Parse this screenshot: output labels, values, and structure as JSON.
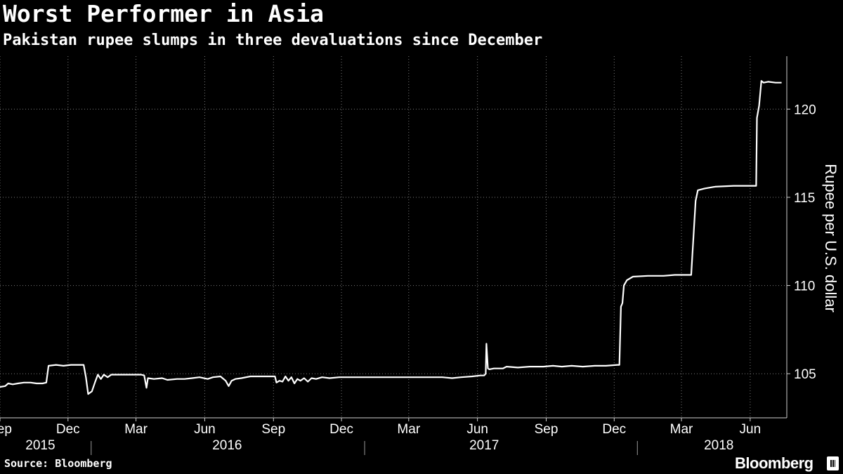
{
  "header": {
    "title": "Worst Performer in Asia",
    "subtitle": "Pakistan rupee slumps in three devaluations since December"
  },
  "footer": {
    "source": "Source: Bloomberg",
    "brand": "Bloomberg"
  },
  "colors": {
    "background": "#000000",
    "line": "#ffffff",
    "grid": "#7a7a7a",
    "text": "#ffffff"
  },
  "chart_data": {
    "type": "line",
    "title": "Worst Performer in Asia",
    "subtitle": "Pakistan rupee slumps in three devaluations since December",
    "xlabel": "",
    "ylabel": "Rupee per U.S. dollar",
    "xlim": [
      "2015-09-01",
      "2018-07-20"
    ],
    "ylim": [
      102.5,
      123.0
    ],
    "y_axis_position": "right",
    "y_ticks": [
      105,
      110,
      115,
      120
    ],
    "x_month_ticks": [
      {
        "label": "Sep",
        "date": "2015-09-01"
      },
      {
        "label": "Dec",
        "date": "2015-12-01"
      },
      {
        "label": "Mar",
        "date": "2016-03-01"
      },
      {
        "label": "Jun",
        "date": "2016-06-01"
      },
      {
        "label": "Sep",
        "date": "2016-09-01"
      },
      {
        "label": "Dec",
        "date": "2016-12-01"
      },
      {
        "label": "Mar",
        "date": "2017-03-01"
      },
      {
        "label": "Jun",
        "date": "2017-06-01"
      },
      {
        "label": "Sep",
        "date": "2017-09-01"
      },
      {
        "label": "Dec",
        "date": "2017-12-01"
      },
      {
        "label": "Mar",
        "date": "2018-03-01"
      },
      {
        "label": "Jun",
        "date": "2018-06-01"
      }
    ],
    "x_year_labels": [
      {
        "label": "2015",
        "date": "2015-10-25"
      },
      {
        "label": "2016",
        "date": "2016-07-01"
      },
      {
        "label": "2017",
        "date": "2017-06-10"
      },
      {
        "label": "2018",
        "date": "2018-04-20"
      }
    ],
    "x_year_separators": [
      "2016-01-01",
      "2017-01-01",
      "2018-01-01"
    ],
    "grid": true,
    "series": [
      {
        "name": "",
        "points": [
          [
            "2015-09-01",
            104.25
          ],
          [
            "2015-09-08",
            104.3
          ],
          [
            "2015-09-12",
            104.45
          ],
          [
            "2015-09-18",
            104.4
          ],
          [
            "2015-09-25",
            104.45
          ],
          [
            "2015-10-03",
            104.5
          ],
          [
            "2015-10-12",
            104.5
          ],
          [
            "2015-10-20",
            104.45
          ],
          [
            "2015-10-28",
            104.45
          ],
          [
            "2015-11-02",
            104.5
          ],
          [
            "2015-11-05",
            105.45
          ],
          [
            "2015-11-15",
            105.5
          ],
          [
            "2015-11-25",
            105.45
          ],
          [
            "2015-12-05",
            105.5
          ],
          [
            "2015-12-15",
            105.5
          ],
          [
            "2015-12-22",
            105.5
          ],
          [
            "2015-12-25",
            104.8
          ],
          [
            "2015-12-28",
            103.85
          ],
          [
            "2016-01-02",
            104.0
          ],
          [
            "2016-01-06",
            104.5
          ],
          [
            "2016-01-10",
            104.95
          ],
          [
            "2016-01-14",
            104.7
          ],
          [
            "2016-01-18",
            104.95
          ],
          [
            "2016-01-23",
            104.8
          ],
          [
            "2016-01-28",
            104.95
          ],
          [
            "2016-02-10",
            104.95
          ],
          [
            "2016-02-25",
            104.95
          ],
          [
            "2016-03-08",
            104.95
          ],
          [
            "2016-03-12",
            104.9
          ],
          [
            "2016-03-15",
            104.2
          ],
          [
            "2016-03-17",
            104.75
          ],
          [
            "2016-03-25",
            104.7
          ],
          [
            "2016-04-05",
            104.75
          ],
          [
            "2016-04-12",
            104.65
          ],
          [
            "2016-04-25",
            104.7
          ],
          [
            "2016-05-05",
            104.7
          ],
          [
            "2016-05-15",
            104.75
          ],
          [
            "2016-05-25",
            104.8
          ],
          [
            "2016-06-05",
            104.7
          ],
          [
            "2016-06-12",
            104.8
          ],
          [
            "2016-06-22",
            104.85
          ],
          [
            "2016-06-29",
            104.6
          ],
          [
            "2016-07-03",
            104.3
          ],
          [
            "2016-07-07",
            104.6
          ],
          [
            "2016-07-12",
            104.7
          ],
          [
            "2016-07-20",
            104.75
          ],
          [
            "2016-08-01",
            104.85
          ],
          [
            "2016-08-15",
            104.85
          ],
          [
            "2016-08-28",
            104.85
          ],
          [
            "2016-09-03",
            104.85
          ],
          [
            "2016-09-05",
            104.5
          ],
          [
            "2016-09-09",
            104.6
          ],
          [
            "2016-09-13",
            104.55
          ],
          [
            "2016-09-17",
            104.85
          ],
          [
            "2016-09-21",
            104.6
          ],
          [
            "2016-09-25",
            104.8
          ],
          [
            "2016-09-29",
            104.45
          ],
          [
            "2016-10-03",
            104.7
          ],
          [
            "2016-10-07",
            104.6
          ],
          [
            "2016-10-12",
            104.75
          ],
          [
            "2016-10-17",
            104.55
          ],
          [
            "2016-10-22",
            104.75
          ],
          [
            "2016-10-28",
            104.7
          ],
          [
            "2016-11-05",
            104.8
          ],
          [
            "2016-11-15",
            104.75
          ],
          [
            "2016-11-28",
            104.8
          ],
          [
            "2016-12-10",
            104.8
          ],
          [
            "2016-12-25",
            104.8
          ],
          [
            "2017-01-10",
            104.8
          ],
          [
            "2017-02-01",
            104.8
          ],
          [
            "2017-02-25",
            104.8
          ],
          [
            "2017-03-20",
            104.8
          ],
          [
            "2017-04-15",
            104.8
          ],
          [
            "2017-04-28",
            104.75
          ],
          [
            "2017-05-10",
            104.8
          ],
          [
            "2017-05-25",
            104.85
          ],
          [
            "2017-06-05",
            104.9
          ],
          [
            "2017-06-10",
            104.9
          ],
          [
            "2017-06-12",
            105.0
          ],
          [
            "2017-06-13",
            106.7
          ],
          [
            "2017-06-15",
            105.3
          ],
          [
            "2017-06-17",
            105.25
          ],
          [
            "2017-06-23",
            105.3
          ],
          [
            "2017-07-05",
            105.3
          ],
          [
            "2017-07-10",
            105.4
          ],
          [
            "2017-07-25",
            105.35
          ],
          [
            "2017-08-10",
            105.4
          ],
          [
            "2017-08-28",
            105.4
          ],
          [
            "2017-09-10",
            105.45
          ],
          [
            "2017-09-22",
            105.4
          ],
          [
            "2017-10-05",
            105.45
          ],
          [
            "2017-10-20",
            105.4
          ],
          [
            "2017-11-05",
            105.45
          ],
          [
            "2017-11-20",
            105.45
          ],
          [
            "2017-12-05",
            105.5
          ],
          [
            "2017-12-08",
            105.5
          ],
          [
            "2017-12-10",
            108.8
          ],
          [
            "2017-12-12",
            109.0
          ],
          [
            "2017-12-14",
            110.0
          ],
          [
            "2017-12-18",
            110.3
          ],
          [
            "2017-12-26",
            110.5
          ],
          [
            "2018-01-15",
            110.55
          ],
          [
            "2018-02-05",
            110.55
          ],
          [
            "2018-02-20",
            110.6
          ],
          [
            "2018-03-14",
            110.6
          ],
          [
            "2018-03-20",
            114.8
          ],
          [
            "2018-03-23",
            115.4
          ],
          [
            "2018-04-01",
            115.5
          ],
          [
            "2018-04-15",
            115.6
          ],
          [
            "2018-05-10",
            115.65
          ],
          [
            "2018-06-01",
            115.65
          ],
          [
            "2018-06-09",
            115.65
          ],
          [
            "2018-06-10",
            119.5
          ],
          [
            "2018-06-13",
            120.2
          ],
          [
            "2018-06-16",
            121.6
          ],
          [
            "2018-06-19",
            121.5
          ],
          [
            "2018-06-25",
            121.55
          ],
          [
            "2018-07-05",
            121.5
          ],
          [
            "2018-07-13",
            121.5
          ]
        ]
      }
    ]
  }
}
